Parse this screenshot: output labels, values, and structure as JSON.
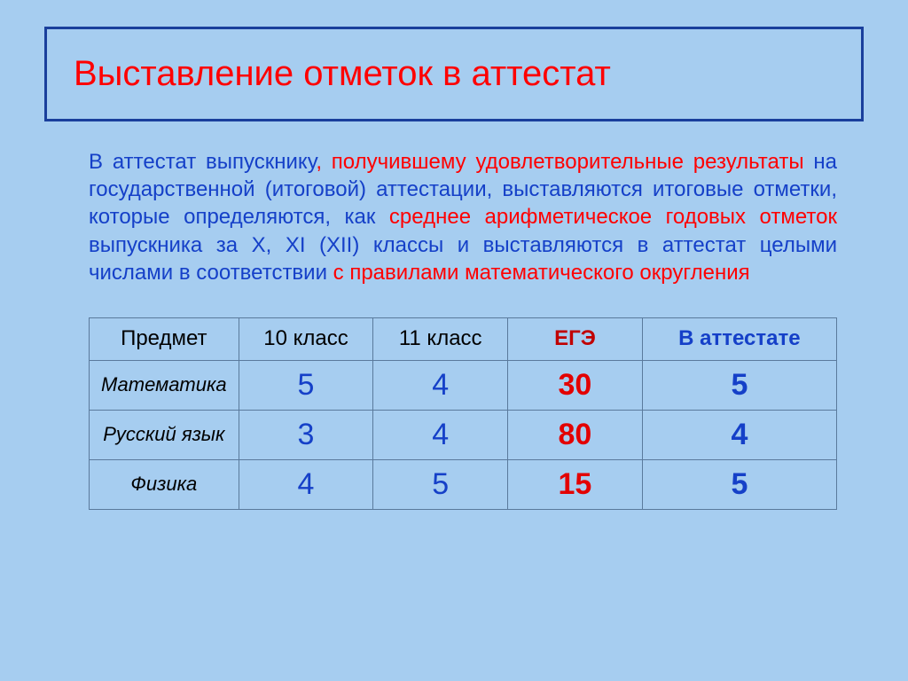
{
  "title": "Выставление отметок в аттестат",
  "para": {
    "s1a": "В аттестат выпускнику",
    "s1b": ", получившему ",
    "s2": "удовлетворительные результаты",
    "s3": " на государственной (итоговой) аттестации, выставляются итоговые отметки, которые определяются, как ",
    "s4": "среднее арифметическое годовых отметок",
    "s5": " выпускника за X, XI (XII) классы и выставляются в аттестат целыми числами в соответствии ",
    "s6": "с правилами математического округления"
  },
  "headers": {
    "c1": "Предмет",
    "c2": "10 класс",
    "c3": "11 класс",
    "c4": "ЕГЭ",
    "c5": "В аттестате"
  },
  "rows": [
    {
      "subj": "Математика",
      "g10": "5",
      "g11": "4",
      "ege": "30",
      "cert": "5"
    },
    {
      "subj": "Русский язык",
      "g10": "3",
      "g11": "4",
      "ege": "80",
      "cert": "4"
    },
    {
      "subj": "Физика",
      "g10": "4",
      "g11": "5",
      "ege": "15",
      "cert": "5"
    }
  ],
  "colors": {
    "background": "#a6cdf0",
    "title_border": "#1a3f9c",
    "title_text": "#ff0000",
    "body_text": "#1540c8",
    "red_text": "#ff0000",
    "table_border": "#5a7a9c",
    "ege_header": "#c00000",
    "ege_value": "#e30000"
  }
}
